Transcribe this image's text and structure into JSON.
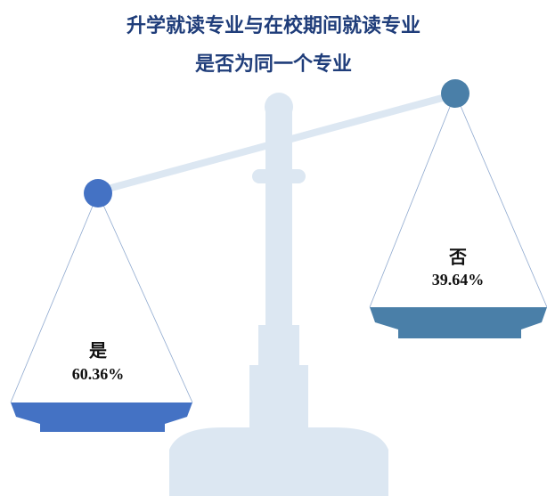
{
  "chart_data": {
    "type": "balance",
    "title": [
      "升学就读专业与在校期间就读专业",
      "是否为同一个专业"
    ],
    "categories": [
      "是",
      "否"
    ],
    "values": [
      60.36,
      39.64
    ],
    "value_labels": [
      "60.36%",
      "39.64%"
    ],
    "colors": [
      "#4472c4",
      "#4a7fa8"
    ]
  }
}
